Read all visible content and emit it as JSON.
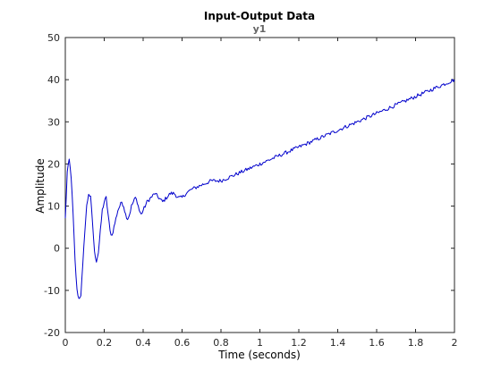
{
  "chart_data": {
    "type": "line",
    "title": "Input-Output Data",
    "subtitle": "y1",
    "xlabel": "Time (seconds)",
    "ylabel": "Amplitude",
    "xlim": [
      0,
      2
    ],
    "ylim": [
      -20,
      50
    ],
    "xticks": [
      "0",
      "0.2",
      "0.4",
      "0.6",
      "0.8",
      "1",
      "1.2",
      "1.4",
      "1.6",
      "1.8",
      "2"
    ],
    "yticks": [
      "-20",
      "-10",
      "0",
      "10",
      "20",
      "30",
      "40",
      "50"
    ],
    "grid": false,
    "line_color": "#0000cc",
    "series": [
      {
        "x": [
          0,
          0.01,
          0.02,
          0.03,
          0.04,
          0.05,
          0.06,
          0.07,
          0.08,
          0.09,
          0.1,
          0.11,
          0.12,
          0.13,
          0.14,
          0.15,
          0.16,
          0.17,
          0.18,
          0.19,
          0.2,
          0.21,
          0.22,
          0.23,
          0.24,
          0.25,
          0.26,
          0.27,
          0.28,
          0.29,
          0.3,
          0.31,
          0.32,
          0.33,
          0.34,
          0.35,
          0.36,
          0.37,
          0.38,
          0.39,
          0.4,
          0.42,
          0.44,
          0.46,
          0.48,
          0.5,
          0.52,
          0.54,
          0.56,
          0.58,
          0.6,
          0.62,
          0.65,
          0.7,
          0.75,
          0.8,
          0.85,
          0.9,
          0.95,
          1.0,
          1.05,
          1.1,
          1.15,
          1.2,
          1.25,
          1.3,
          1.35,
          1.4,
          1.45,
          1.5,
          1.55,
          1.6,
          1.65,
          1.7,
          1.75,
          1.8,
          1.85,
          1.9,
          1.95,
          2.0
        ],
        "y": [
          7,
          18,
          21,
          17,
          8,
          -3,
          -10,
          -12,
          -11,
          -4,
          4,
          10,
          13,
          12,
          6,
          -1,
          -3,
          -1,
          4,
          9,
          11,
          12,
          8,
          4,
          3,
          5,
          7,
          9,
          10,
          11,
          10,
          8,
          7,
          8,
          10,
          11,
          12,
          11,
          9,
          8,
          9,
          11,
          12,
          13,
          12,
          11,
          12,
          13,
          13,
          12,
          12,
          13,
          14,
          15,
          16,
          16,
          17,
          18,
          19,
          20,
          21,
          22,
          23,
          24,
          25,
          26,
          27,
          28,
          29,
          30,
          31,
          32,
          33,
          34,
          35,
          36,
          37,
          38,
          39,
          40
        ]
      }
    ]
  }
}
